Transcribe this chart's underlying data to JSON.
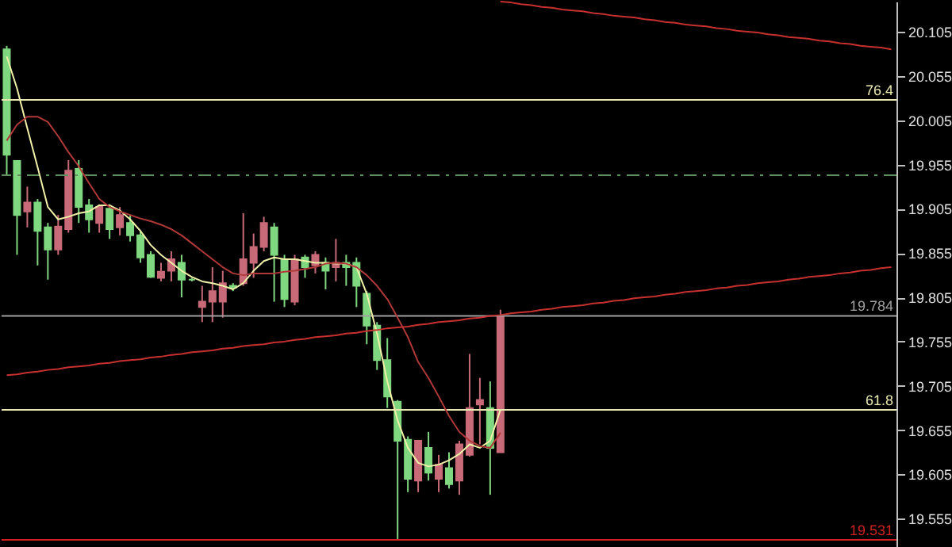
{
  "chart_data": {
    "type": "candlestick",
    "categories": [
      null,
      null,
      null,
      null,
      null,
      null,
      null,
      null,
      null,
      null,
      null,
      null,
      null,
      null,
      null,
      null,
      null,
      null,
      null,
      null,
      null,
      null,
      null,
      null,
      null,
      null,
      null,
      null,
      null,
      null,
      null,
      null,
      null,
      null,
      null,
      null,
      null,
      null,
      null,
      null,
      null,
      null,
      null,
      null,
      null,
      null,
      null,
      null,
      null,
      null,
      null,
      null,
      null,
      null,
      null,
      null,
      null,
      null,
      null,
      null,
      null,
      null,
      null,
      null,
      null,
      null,
      null,
      null,
      null,
      null,
      null,
      null,
      null,
      null,
      null,
      null,
      null,
      null,
      null,
      null,
      null,
      null,
      null,
      null,
      null,
      null,
      null
    ],
    "ohlc": [
      [
        20.085,
        20.089,
        19.943,
        19.966
      ],
      [
        19.959,
        19.959,
        19.853,
        19.898
      ],
      [
        19.902,
        19.93,
        19.884,
        19.912
      ],
      [
        19.912,
        19.916,
        19.841,
        19.88
      ],
      [
        19.884,
        19.889,
        19.825,
        19.859
      ],
      [
        19.859,
        19.898,
        19.853,
        19.885
      ],
      [
        19.882,
        19.96,
        19.878,
        19.948
      ],
      [
        19.95,
        19.96,
        19.889,
        19.907
      ],
      [
        19.909,
        19.916,
        19.878,
        19.893
      ],
      [
        19.889,
        19.91,
        19.878,
        19.907
      ],
      [
        19.905,
        19.91,
        19.871,
        19.882
      ],
      [
        19.884,
        19.907,
        19.875,
        19.898
      ],
      [
        19.889,
        19.898,
        19.868,
        19.875
      ],
      [
        19.875,
        19.88,
        19.844,
        19.85
      ],
      [
        19.853,
        19.857,
        19.827,
        19.828
      ],
      [
        19.827,
        19.844,
        19.823,
        19.834
      ],
      [
        19.835,
        19.857,
        19.823,
        19.848
      ],
      [
        19.844,
        19.853,
        19.805,
        19.825
      ],
      [
        19.825,
        19.827,
        19.823,
        19.825
      ],
      [
        19.794,
        19.818,
        19.777,
        19.8
      ],
      [
        19.8,
        19.839,
        19.777,
        19.812
      ],
      [
        19.8,
        19.835,
        19.782,
        19.821
      ],
      [
        19.818,
        19.821,
        19.812,
        19.816
      ],
      [
        19.821,
        19.9,
        19.818,
        19.848
      ],
      [
        19.844,
        19.877,
        19.827,
        19.862
      ],
      [
        19.862,
        19.896,
        19.857,
        19.889
      ],
      [
        19.884,
        19.889,
        19.8,
        19.853
      ],
      [
        19.848,
        19.853,
        19.794,
        19.803
      ],
      [
        19.8,
        19.853,
        19.796,
        19.848
      ],
      [
        19.85,
        19.853,
        19.827,
        19.839
      ],
      [
        19.841,
        19.857,
        19.832,
        19.853
      ],
      [
        19.844,
        19.85,
        19.814,
        19.835
      ],
      [
        19.839,
        19.871,
        19.823,
        19.844
      ],
      [
        19.844,
        19.853,
        19.818,
        19.839
      ],
      [
        19.844,
        19.85,
        19.794,
        19.818
      ],
      [
        19.809,
        19.812,
        19.752,
        19.773
      ],
      [
        19.773,
        19.777,
        19.723,
        19.734
      ],
      [
        19.734,
        19.759,
        19.68,
        19.693
      ],
      [
        19.687,
        19.689,
        19.532,
        19.643
      ],
      [
        19.644,
        19.648,
        19.585,
        19.6
      ],
      [
        19.598,
        19.644,
        19.585,
        19.643
      ],
      [
        19.635,
        19.653,
        19.598,
        19.607
      ],
      [
        19.6,
        19.627,
        19.585,
        19.616
      ],
      [
        19.612,
        19.63,
        19.589,
        19.594
      ],
      [
        19.598,
        19.643,
        19.582,
        19.639
      ],
      [
        19.627,
        19.741,
        19.625,
        19.68
      ],
      [
        19.684,
        19.714,
        19.639,
        19.689
      ],
      [
        19.68,
        19.71,
        19.582,
        19.635
      ],
      [
        19.63,
        19.791,
        19.63,
        19.784
      ],
      null,
      null,
      null,
      null,
      null,
      null,
      null,
      null,
      null,
      null,
      null,
      null,
      null,
      null,
      null,
      null,
      null,
      null,
      null,
      null,
      null,
      null,
      null,
      null,
      null,
      null,
      null,
      null,
      null,
      null,
      null,
      null,
      null,
      null,
      null,
      null,
      null,
      null
    ],
    "colors": [
      "#7fd87f",
      "#7fd87f",
      "#c86a78",
      "#7fd87f",
      "#7fd87f",
      "#c86a78",
      "#c86a78",
      "#7fd87f",
      "#7fd87f",
      "#c86a78",
      "#7fd87f",
      "#c86a78",
      "#7fd87f",
      "#7fd87f",
      "#7fd87f",
      "#c86a78",
      "#c86a78",
      "#7fd87f",
      "#7fd87f",
      "#c86a78",
      "#c86a78",
      "#c86a78",
      "#7fd87f",
      "#c86a78",
      "#c86a78",
      "#c86a78",
      "#7fd87f",
      "#7fd87f",
      "#c86a78",
      "#7fd87f",
      "#c86a78",
      "#7fd87f",
      "#c86a78",
      "#7fd87f",
      "#7fd87f",
      "#7fd87f",
      "#7fd87f",
      "#7fd87f",
      "#7fd87f",
      "#7fd87f",
      "#c86a78",
      "#7fd87f",
      "#c86a78",
      "#7fd87f",
      "#c86a78",
      "#c86a78",
      "#c86a78",
      "#7fd87f",
      "#c86a78",
      null,
      null,
      null,
      null,
      null,
      null,
      null,
      null,
      null,
      null,
      null,
      null,
      null,
      null,
      null,
      null,
      null,
      null,
      null,
      null,
      null,
      null,
      null,
      null,
      null,
      null,
      null,
      null,
      null,
      null,
      null,
      null,
      null,
      null,
      null,
      null,
      null,
      null
    ],
    "series": [
      {
        "type": "line",
        "color": "#f0f0a8",
        "values": [
          20.077,
          20.041,
          19.996,
          19.952,
          19.907,
          19.893,
          19.896,
          19.9,
          19.902,
          19.909,
          19.909,
          19.903,
          19.893,
          19.88,
          19.864,
          19.853,
          19.844,
          19.835,
          19.828,
          19.823,
          19.821,
          19.818,
          19.814,
          19.821,
          19.835,
          19.846,
          19.85,
          19.848,
          19.848,
          19.846,
          19.844,
          19.844,
          19.843,
          19.843,
          19.839,
          19.809,
          19.764,
          19.71,
          19.666,
          19.635,
          19.618,
          19.614,
          19.616,
          19.621,
          19.628,
          19.639,
          19.635,
          19.643,
          19.678,
          null,
          null,
          null,
          null,
          null,
          null,
          null,
          null,
          null,
          null,
          null,
          null,
          null,
          null,
          null,
          null,
          null,
          null,
          null,
          null,
          null,
          null,
          null,
          null,
          null,
          null,
          null,
          null,
          null,
          null,
          null,
          null,
          null,
          null,
          null,
          null,
          null,
          null
        ]
      },
      {
        "type": "line",
        "color": "#b03838",
        "values": [
          19.982,
          20.0,
          20.009,
          20.009,
          20.003,
          19.987,
          19.969,
          19.953,
          19.934,
          19.916,
          19.907,
          19.902,
          19.898,
          19.894,
          19.891,
          19.887,
          19.882,
          19.875,
          19.866,
          19.857,
          19.848,
          19.839,
          19.832,
          19.83,
          19.832,
          19.832,
          19.832,
          19.834,
          19.835,
          19.837,
          19.839,
          19.843,
          19.844,
          19.843,
          19.839,
          19.83,
          19.818,
          19.803,
          19.782,
          19.76,
          19.732,
          19.714,
          19.693,
          19.671,
          19.653,
          19.643,
          19.637,
          19.635,
          19.652,
          null,
          null,
          null,
          null,
          null,
          null,
          null,
          null,
          null,
          null,
          null,
          null,
          null,
          null,
          null,
          null,
          null,
          null,
          null,
          null,
          null,
          null,
          null,
          null,
          null,
          null,
          null,
          null,
          null,
          null,
          null,
          null,
          null,
          null,
          null,
          null,
          null,
          null
        ]
      },
      {
        "type": "line",
        "color": "#c83030",
        "values": [
          null,
          null,
          null,
          null,
          null,
          null,
          null,
          null,
          null,
          null,
          null,
          null,
          null,
          null,
          null,
          null,
          null,
          null,
          null,
          null,
          null,
          null,
          null,
          null,
          null,
          null,
          null,
          null,
          null,
          null,
          null,
          null,
          null,
          null,
          null,
          null,
          null,
          null,
          null,
          null,
          null,
          null,
          null,
          null,
          null,
          null,
          null,
          null,
          20.139,
          20.138,
          20.136,
          20.135,
          20.133,
          20.132,
          20.13,
          20.129,
          20.128,
          20.126,
          20.125,
          20.123,
          20.122,
          20.121,
          20.119,
          20.118,
          20.116,
          20.115,
          20.113,
          20.112,
          20.111,
          20.109,
          20.108,
          20.106,
          20.105,
          20.104,
          20.102,
          20.101,
          20.099,
          20.098,
          20.097,
          20.095,
          20.094,
          20.092,
          20.091,
          20.089,
          20.088,
          20.087,
          20.085
        ]
      },
      {
        "type": "line",
        "color": "#c83030",
        "values": [
          19.717,
          19.718,
          19.72,
          19.721,
          19.723,
          19.724,
          19.726,
          19.727,
          19.728,
          19.73,
          19.731,
          19.733,
          19.734,
          19.735,
          19.737,
          19.738,
          19.74,
          19.741,
          19.743,
          19.744,
          19.745,
          19.747,
          19.748,
          19.75,
          19.751,
          19.752,
          19.754,
          19.755,
          19.757,
          19.758,
          19.76,
          19.761,
          19.762,
          19.764,
          19.765,
          19.767,
          19.768,
          19.77,
          19.771,
          19.772,
          19.774,
          19.775,
          19.777,
          19.778,
          19.779,
          19.781,
          19.782,
          19.784,
          19.785,
          19.787,
          19.788,
          19.789,
          19.791,
          19.792,
          19.794,
          19.795,
          19.796,
          19.798,
          19.799,
          19.801,
          19.802,
          19.804,
          19.805,
          19.806,
          19.808,
          19.809,
          19.811,
          19.812,
          19.813,
          19.815,
          19.816,
          19.818,
          19.819,
          19.821,
          19.822,
          19.823,
          19.825,
          19.826,
          19.828,
          19.829,
          19.83,
          19.832,
          19.833,
          19.835,
          19.836,
          19.838,
          19.839
        ]
      }
    ],
    "annotations": [
      {
        "text": "76.4",
        "y": 20.028
      },
      {
        "text": "61.8",
        "y": 19.678
      }
    ],
    "ref_lines": [
      {
        "axis": "y",
        "value": 20.028,
        "color": "#e8e8b0"
      },
      {
        "axis": "y",
        "value": 19.943,
        "color": "#5f8f5f",
        "line_style": "dashed"
      },
      {
        "axis": "y",
        "value": 19.784,
        "label": "19.784",
        "color": "#a0a0a0"
      },
      {
        "axis": "y",
        "value": 19.678,
        "color": "#e8e8b0"
      },
      {
        "axis": "y",
        "value": 19.531,
        "label": "19.531",
        "color": "#d02020"
      }
    ],
    "ylim": [
      19.523,
      20.139
    ],
    "yticks": [
      20.105,
      20.055,
      20.005,
      19.955,
      19.905,
      19.855,
      19.805,
      19.755,
      19.705,
      19.655,
      19.605,
      19.555
    ],
    "tick_labels": "y",
    "grid": false
  }
}
